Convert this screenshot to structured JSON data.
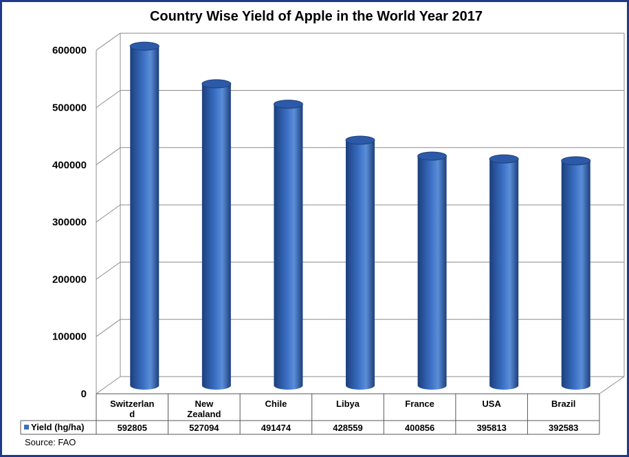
{
  "chart_data": {
    "type": "bar",
    "title": "Country Wise Yield of Apple in the World Year 2017",
    "categories": [
      [
        "Switzerlan",
        "d"
      ],
      [
        "New",
        "Zealand"
      ],
      [
        "Chile"
      ],
      [
        "Libya"
      ],
      [
        "France"
      ],
      [
        "USA"
      ],
      [
        "Brazil"
      ]
    ],
    "series": [
      {
        "name": "Yield (hg/ha)",
        "values": [
          592805,
          527094,
          491474,
          428559,
          400856,
          395813,
          392583
        ],
        "value_labels": [
          "592805",
          "527094",
          "491474",
          "428559",
          "400856",
          "395813",
          "392583"
        ],
        "color": "#3a6fc4"
      }
    ],
    "ylim": [
      0,
      600000
    ],
    "yticks": [
      "0",
      "100000",
      "200000",
      "300000",
      "400000",
      "500000",
      "600000"
    ],
    "grid": true,
    "data_table": true
  },
  "source": "Source: FAO",
  "colors": {
    "frame": "#1f3a8a",
    "bar": "#3a6fc4",
    "bar_dark": "#1c3f7c",
    "grid": "#8c8c8c"
  }
}
